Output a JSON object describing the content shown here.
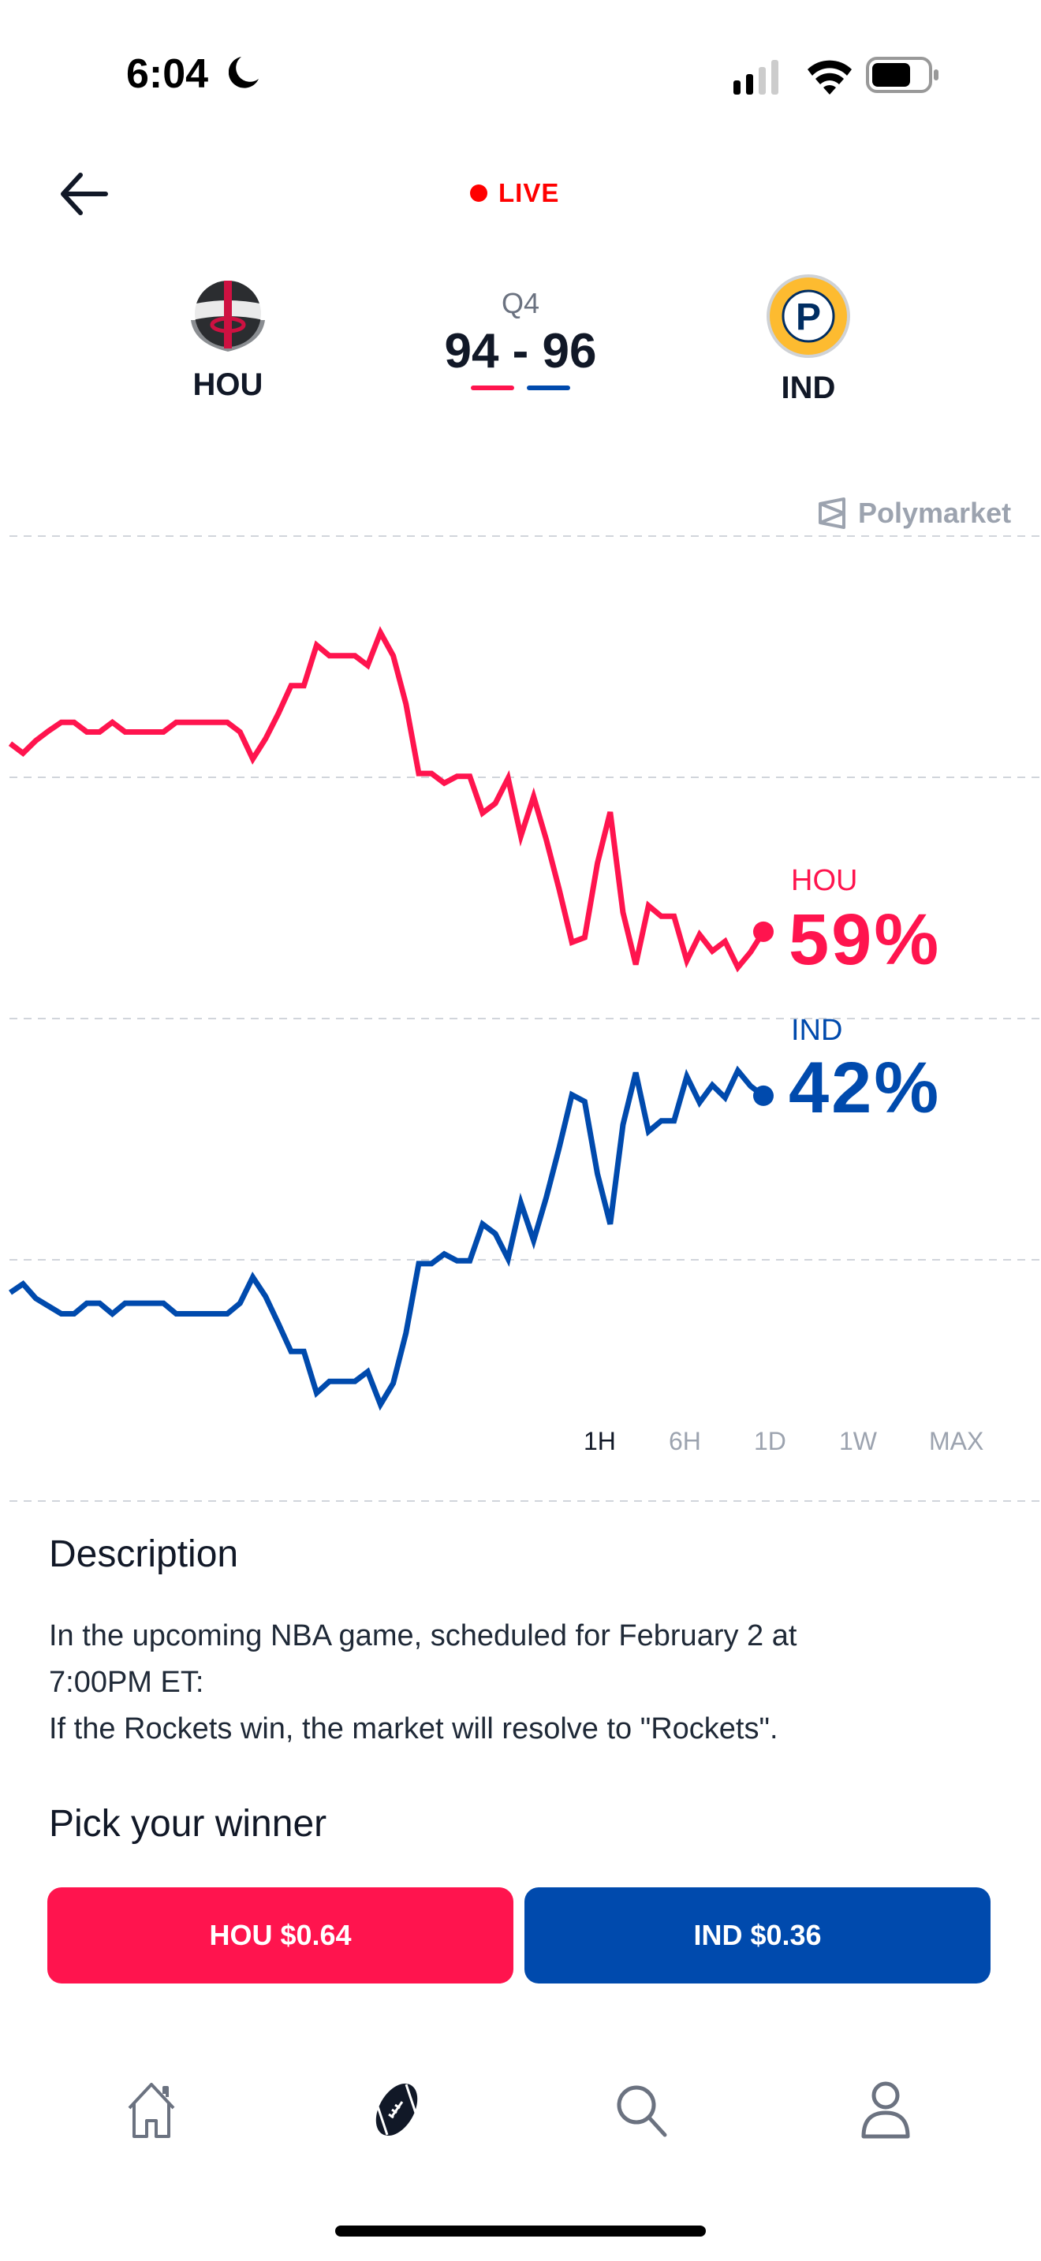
{
  "status_bar": {
    "time": "6:04",
    "icons": [
      "moon-icon",
      "signal-icon",
      "wifi-icon",
      "battery-icon"
    ]
  },
  "header": {
    "live_label": "LIVE",
    "back_icon": "arrow-left-icon"
  },
  "game": {
    "period": "Q4",
    "score": "94 - 96",
    "home": {
      "abbr": "HOU",
      "color": "#ff144e"
    },
    "away": {
      "abbr": "IND",
      "color": "#004aad"
    }
  },
  "chart": {
    "source": "Polymarket"
  },
  "chart_data": {
    "type": "line",
    "ylim": [
      0,
      100
    ],
    "grid": true,
    "gridlines": [
      100,
      75,
      50,
      25,
      0
    ],
    "series": [
      {
        "name": "HOU",
        "color": "#ff144e",
        "current_label": "59%",
        "values": [
          78.5,
          77.5,
          78.8,
          79.8,
          80.7,
          80.7,
          79.7,
          79.7,
          80.7,
          79.7,
          79.7,
          79.7,
          79.7,
          80.7,
          80.7,
          80.7,
          80.7,
          80.7,
          79.7,
          76.9,
          79.0,
          81.6,
          84.5,
          84.5,
          88.7,
          87.6,
          87.6,
          87.6,
          86.6,
          90.0,
          87.6,
          82.6,
          75.4,
          75.4,
          74.4,
          75.1,
          75.1,
          71.3,
          72.3,
          74.9,
          68.9,
          73.0,
          68.5,
          63.4,
          57.9,
          58.4,
          66.1,
          71.4,
          61.0,
          55.6,
          61.7,
          60.6,
          60.6,
          56.0,
          58.7,
          57.0,
          58.0,
          55.3,
          56.9,
          59.0
        ]
      },
      {
        "name": "IND",
        "color": "#004aad",
        "current_label": "42%",
        "values": [
          21.6,
          22.5,
          21.0,
          20.2,
          19.4,
          19.4,
          20.5,
          20.5,
          19.4,
          20.5,
          20.5,
          20.5,
          20.5,
          19.4,
          19.4,
          19.4,
          19.4,
          19.4,
          20.5,
          23.2,
          21.2,
          18.4,
          15.5,
          15.5,
          11.2,
          12.4,
          12.4,
          12.4,
          13.4,
          10.0,
          12.2,
          17.4,
          24.6,
          24.6,
          25.6,
          24.9,
          24.9,
          28.7,
          27.7,
          25.1,
          30.9,
          27.0,
          31.5,
          36.6,
          42.1,
          41.4,
          33.9,
          28.7,
          39.0,
          44.4,
          38.3,
          39.4,
          39.4,
          44.0,
          41.3,
          43.1,
          41.8,
          44.6,
          43.0,
          42.0
        ]
      }
    ]
  },
  "ranges": {
    "items": [
      "1H",
      "6H",
      "1D",
      "1W",
      "MAX"
    ],
    "selected": "1H"
  },
  "description": {
    "heading": "Description",
    "line1": "In the upcoming NBA game, scheduled for February 2 at",
    "line2": "7:00PM ET:",
    "line3": "If the Rockets win, the market will resolve to \"Rockets\"."
  },
  "pick": {
    "heading": "Pick your winner",
    "hou_button": "HOU $0.64",
    "ind_button": "IND $0.36"
  },
  "nav": {
    "items": [
      "home-icon",
      "football-icon",
      "search-icon",
      "profile-icon"
    ],
    "active": "football-icon"
  }
}
